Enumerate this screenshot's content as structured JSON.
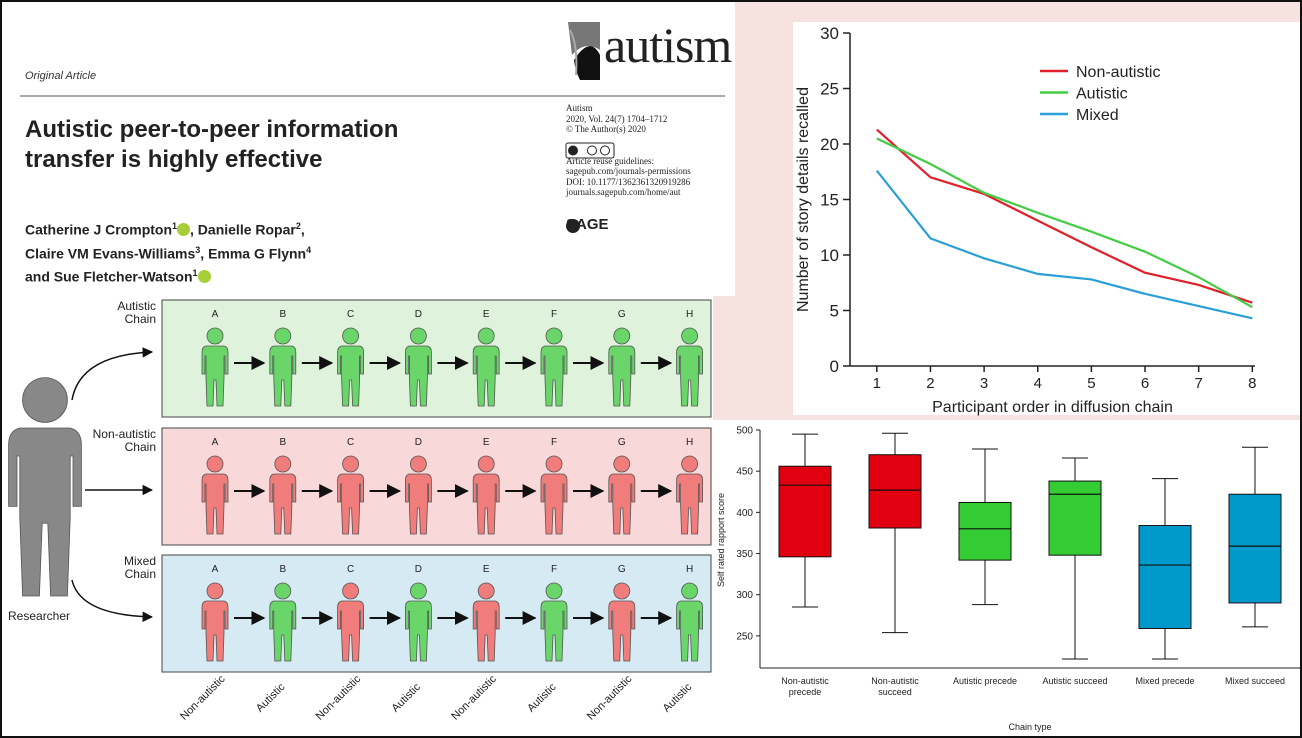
{
  "header": {
    "section": "Original Article",
    "title": [
      "Autistic peer-to-peer information",
      "transfer is highly effective"
    ],
    "authors": [
      [
        {
          "text": "Catherine J Crompton",
          "sup": "1",
          "orcid": true
        },
        {
          "text": ", Danielle Ropar",
          "sup": "2"
        },
        {
          "text": ","
        }
      ],
      [
        {
          "text": "Claire VM Evans-Williams",
          "sup": "3"
        },
        {
          "text": ", Emma G Flynn",
          "sup": "4"
        }
      ],
      [
        {
          "text": "and Sue Fletcher-Watson",
          "sup": "1",
          "orcid": true
        }
      ]
    ],
    "journal": {
      "logo": "autism",
      "info": [
        "Autism",
        "2020, Vol. 24(7) 1704–1712",
        "© The Author(s) 2020"
      ],
      "reuse": [
        "Article reuse guidelines:",
        "sagepub.com/journals-permissions",
        "DOI: 10.1177/1362361320919286",
        "journals.sagepub.com/home/aut"
      ],
      "publisher": "SAGE"
    }
  },
  "diagram": {
    "researcher": "Researcher",
    "letters": [
      "A",
      "B",
      "C",
      "D",
      "E",
      "F",
      "G",
      "H"
    ],
    "roles": [
      "Non-autistic",
      "Autistic",
      "Non-autistic",
      "Autistic",
      "Non-autistic",
      "Autistic",
      "Non-autistic",
      "Autistic"
    ],
    "chains": [
      {
        "label": [
          "Autistic",
          "Chain"
        ],
        "background": "#dff2db",
        "colors": [
          "#6ad66a",
          "#6ad66a",
          "#6ad66a",
          "#6ad66a",
          "#6ad66a",
          "#6ad66a",
          "#6ad66a",
          "#6ad66a"
        ]
      },
      {
        "label": [
          "Non-autistic",
          "Chain"
        ],
        "background": "#f8d8d8",
        "colors": [
          "#f07c7c",
          "#f07c7c",
          "#f07c7c",
          "#f07c7c",
          "#f07c7c",
          "#f07c7c",
          "#f07c7c",
          "#f07c7c"
        ]
      },
      {
        "label": [
          "Mixed",
          "Chain"
        ],
        "background": "#d6eaf4",
        "colors": [
          "#f07c7c",
          "#6ad66a",
          "#f07c7c",
          "#6ad66a",
          "#f07c7c",
          "#6ad66a",
          "#f07c7c",
          "#6ad66a"
        ]
      }
    ]
  },
  "chart_data": [
    {
      "type": "line",
      "x_label": "Participant order in diffusion chain",
      "y_label": "Number of story details recalled",
      "x": [
        1,
        2,
        3,
        4,
        5,
        6,
        7,
        8
      ],
      "xlim": [
        0.5,
        8.05
      ],
      "xticks": [
        1,
        2,
        3,
        4,
        5,
        6,
        7,
        8
      ],
      "ylim": [
        0,
        30
      ],
      "yticks": [
        0,
        5,
        10,
        15,
        20,
        25,
        30
      ],
      "series": [
        {
          "name": "Non-autistic",
          "color": "#e0202a",
          "values": [
            21.3,
            17,
            15.5,
            13.1,
            10.7,
            8.4,
            7.3,
            5.7
          ]
        },
        {
          "name": "Autistic",
          "color": "#44cc44",
          "values": [
            20.5,
            18.2,
            15.6,
            13.8,
            12.1,
            10.3,
            8,
            5.3
          ]
        },
        {
          "name": "Mixed",
          "color": "#2a9fd8",
          "values": [
            17.6,
            11.5,
            9.7,
            8.3,
            7.8,
            6.5,
            5.4,
            4.3
          ]
        }
      ]
    },
    {
      "type": "box",
      "x_label": "Chain type",
      "y_label": "Self rated rapport score",
      "categories": [
        "Non-autistic precede",
        "Non-autistic succeed",
        "Autistic precede",
        "Autistic succeed",
        "Mixed precede",
        "Mixed succeed"
      ],
      "colors": [
        "#e0000f",
        "#e0000f",
        "#33cc33",
        "#33cc33",
        "#0099cc",
        "#0099cc"
      ],
      "min": [
        285,
        254,
        288,
        222,
        222,
        261
      ],
      "q1": [
        346,
        381,
        342,
        348,
        259,
        290
      ],
      "median": [
        433,
        427,
        380,
        422,
        336,
        359
      ],
      "q3": [
        456,
        470,
        412,
        438,
        384,
        422
      ],
      "max": [
        495,
        496,
        477,
        466,
        441,
        479
      ],
      "ylim": [
        211,
        500
      ],
      "yticks": [
        250,
        300,
        350,
        400,
        450,
        500
      ]
    }
  ]
}
